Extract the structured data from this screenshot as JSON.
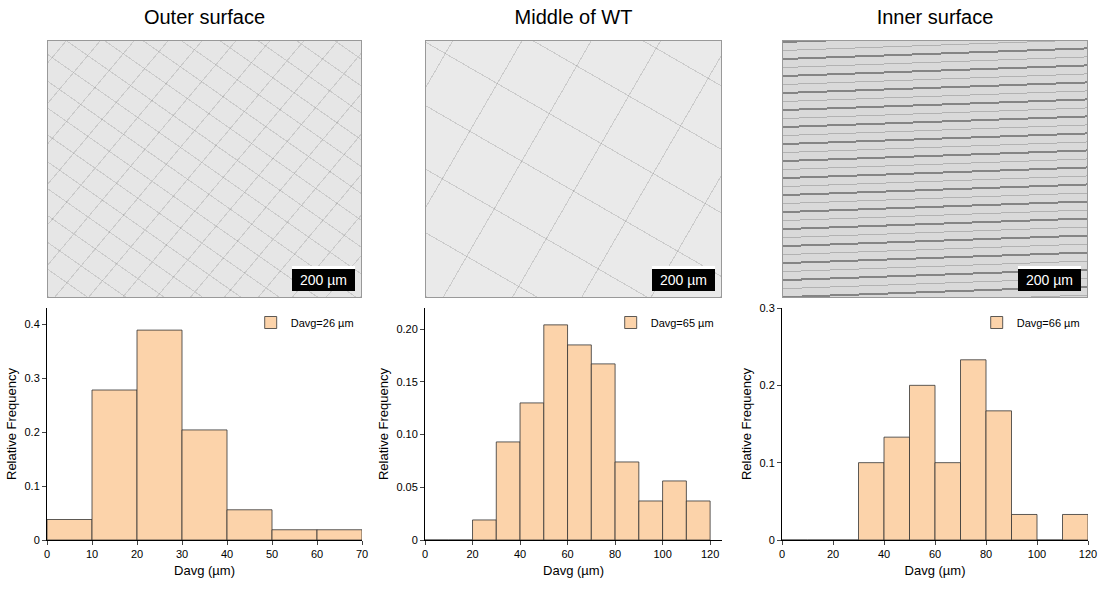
{
  "panels": [
    {
      "title": "Outer surface",
      "scale_bar": "200 µm"
    },
    {
      "title": "Middle of WT",
      "scale_bar": "200 µm"
    },
    {
      "title": "Inner surface",
      "scale_bar": "200 µm"
    }
  ],
  "chart_data": [
    {
      "type": "histogram",
      "xlabel": "Davg (µm)",
      "ylabel": "Relative Frequency",
      "bins": [
        0,
        10,
        20,
        30,
        40,
        50,
        60,
        70
      ],
      "series": [
        {
          "name": "Davg=26 µm",
          "color": "#fcd3aa",
          "values": [
            0.038,
            0.278,
            0.389,
            0.204,
            0.056,
            0.019,
            0.019
          ]
        }
      ],
      "xlim": [
        0,
        70
      ],
      "xticks": [
        0,
        10,
        20,
        30,
        40,
        50,
        60,
        70
      ],
      "ylim": [
        0,
        0.43
      ],
      "yticks": [
        0,
        0.1,
        0.2,
        0.3,
        0.4
      ],
      "legend": "upper right",
      "grid": false
    },
    {
      "type": "histogram",
      "xlabel": "Davg (µm)",
      "ylabel": "Relative Frequency",
      "bins": [
        0,
        10,
        20,
        30,
        40,
        50,
        60,
        70,
        80,
        90,
        100,
        110,
        120
      ],
      "series": [
        {
          "name": "Davg=65 µm",
          "color": "#fcd3aa",
          "values": [
            0,
            0,
            0.019,
            0.093,
            0.13,
            0.204,
            0.185,
            0.167,
            0.074,
            0.037,
            0.056,
            0.037
          ]
        }
      ],
      "xlim": [
        0,
        125
      ],
      "xticks": [
        0,
        20,
        40,
        60,
        80,
        100,
        120
      ],
      "ylim": [
        0,
        0.22
      ],
      "yticks": [
        0,
        {
          "value": 0.05,
          "label": "0.05"
        },
        {
          "value": 0.1,
          "label": "0.10"
        },
        {
          "value": 0.15,
          "label": "0.15"
        },
        {
          "value": 0.2,
          "label": "0.20"
        }
      ],
      "legend": "upper right",
      "grid": false
    },
    {
      "type": "histogram",
      "xlabel": "Davg (µm)",
      "ylabel": "Relative Frequency",
      "bins": [
        0,
        10,
        20,
        30,
        40,
        50,
        60,
        70,
        80,
        90,
        100,
        110,
        120
      ],
      "series": [
        {
          "name": "Davg=66 µm",
          "color": "#fcd3aa",
          "values": [
            0,
            0,
            0,
            0.1,
            0.133,
            0.2,
            0.1,
            0.233,
            0.167,
            0.033,
            0,
            0.033
          ]
        }
      ],
      "xlim": [
        0,
        120
      ],
      "xticks": [
        0,
        20,
        40,
        60,
        80,
        100,
        120
      ],
      "ylim": [
        0,
        0.3
      ],
      "yticks": [
        0,
        0.1,
        0.2,
        0.3
      ],
      "legend": "upper right",
      "grid": false
    }
  ]
}
